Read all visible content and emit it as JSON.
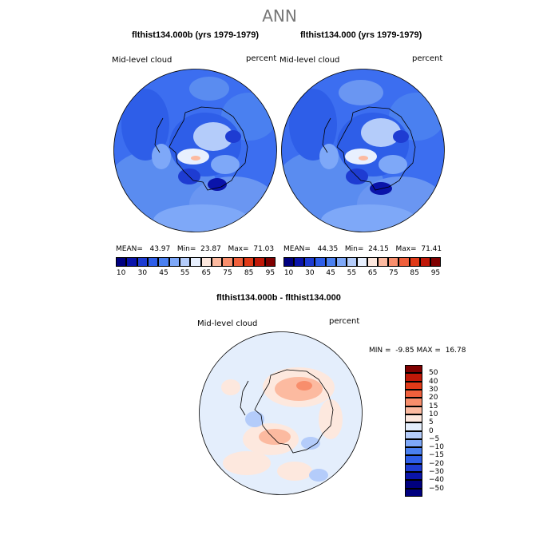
{
  "title": "ANN",
  "colors": {
    "abs_scale": [
      "#00007f",
      "#0a14aa",
      "#1e3cd2",
      "#2e5ee8",
      "#4a80f0",
      "#7ea8f8",
      "#b4ccfa",
      "#e8f0fe",
      "#fde8de",
      "#fcbaa0",
      "#f88e6c",
      "#f0603c",
      "#e03a18",
      "#c01808",
      "#7f0000"
    ],
    "diff_scale": [
      "#00007f",
      "#0a14aa",
      "#1e3cd2",
      "#2e5ee8",
      "#4a80f0",
      "#7ea8f8",
      "#b4ccfa",
      "#e4eefc",
      "#fde8de",
      "#fcbaa0",
      "#f88e6c",
      "#f0603c",
      "#e03a18",
      "#c01808",
      "#7f0000"
    ]
  },
  "panels": [
    {
      "title": "flthist134.000b (yrs 1979-1979)",
      "field": "Mid-level cloud",
      "units": "percent",
      "mean": "43.97",
      "min": "23.87",
      "max": "71.03",
      "mean_label": "MEAN=",
      "min_label": "Min=",
      "max_label": "Max="
    },
    {
      "title": "flthist134.000 (yrs 1979-1979)",
      "field": "Mid-level cloud",
      "units": "percent",
      "mean": "44.35",
      "min": "24.15",
      "max": "71.41",
      "mean_label": "MEAN=",
      "min_label": "Min=",
      "max_label": "Max="
    }
  ],
  "abs_ticks": [
    "10",
    "30",
    "45",
    "55",
    "65",
    "75",
    "85",
    "95"
  ],
  "diff": {
    "title": "flthist134.000b - flthist134.000",
    "field": "Mid-level cloud",
    "units": "percent",
    "min_label": "MIN =",
    "min": "-9.85",
    "max_label": "MAX =",
    "max": "16.78",
    "ticks": [
      "50",
      "40",
      "30",
      "20",
      "15",
      "10",
      "5",
      "0",
      "−5",
      "−10",
      "−15",
      "−20",
      "−30",
      "−40",
      "−50"
    ]
  }
}
